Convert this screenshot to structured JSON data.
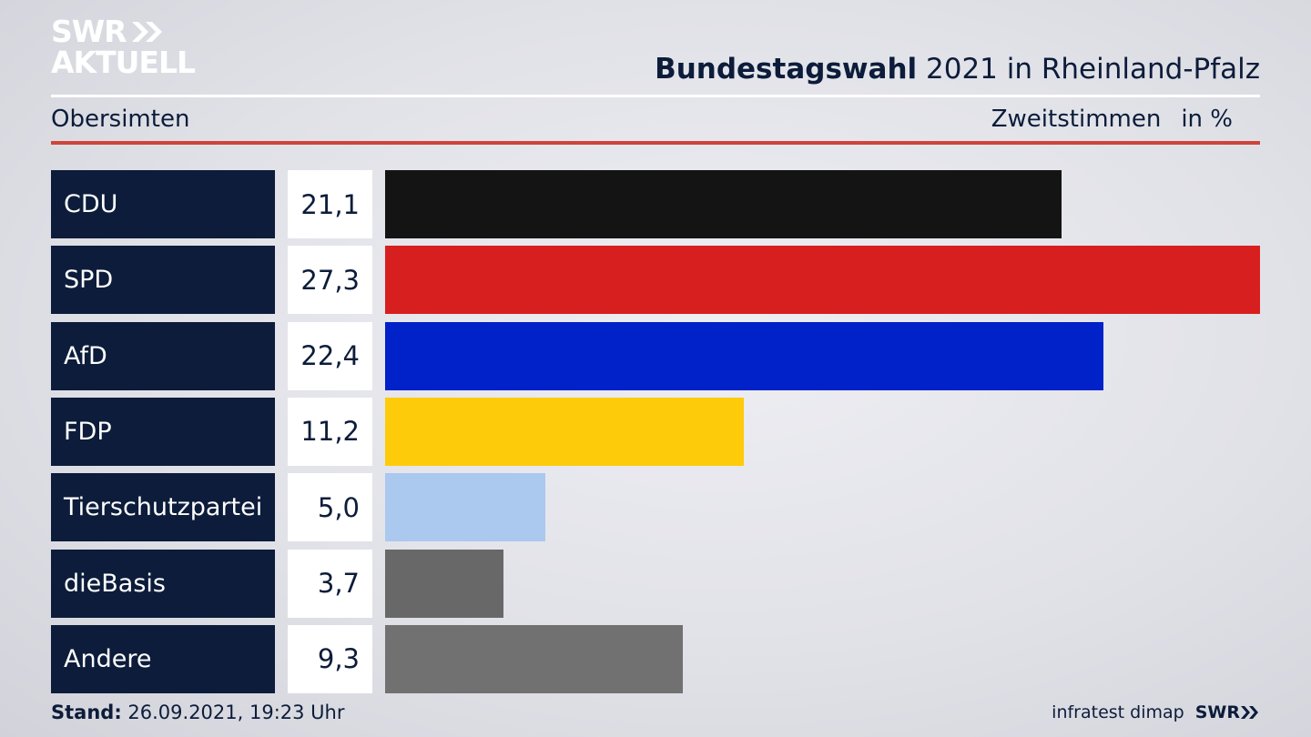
{
  "brand": {
    "line1": "SWR",
    "line2": "AKTUELL",
    "chevron_icon": "double-chevron-right-icon"
  },
  "header": {
    "title_bold": "Bundestagswahl",
    "title_rest": " 2021 in Rheinland-Pfalz",
    "subtitle": "Obersimten",
    "metric": "Zweitstimmen",
    "unit": "in %"
  },
  "colors": {
    "accent_red": "#d0433a",
    "navy": "#0c1c3a"
  },
  "chart_data": {
    "type": "bar",
    "orientation": "horizontal",
    "categories": [
      "CDU",
      "SPD",
      "AfD",
      "FDP",
      "Tierschutzpartei",
      "dieBasis",
      "Andere"
    ],
    "values": [
      21.1,
      27.3,
      22.4,
      11.2,
      5.0,
      3.7,
      9.3
    ],
    "value_labels": [
      "21,1",
      "27,3",
      "22,4",
      "11,2",
      "5,0",
      "3,7",
      "9,3"
    ],
    "colors": [
      "#141414",
      "#d81f1f",
      "#0121c9",
      "#fdcb0a",
      "#abc8ef",
      "#686868",
      "#717172"
    ],
    "xlim": [
      0,
      27.3
    ]
  },
  "footer": {
    "stand_label": "Stand:",
    "stand_value": " 26.09.2021, 19:23 Uhr",
    "source": "infratest dimap",
    "logo": "SWR"
  }
}
